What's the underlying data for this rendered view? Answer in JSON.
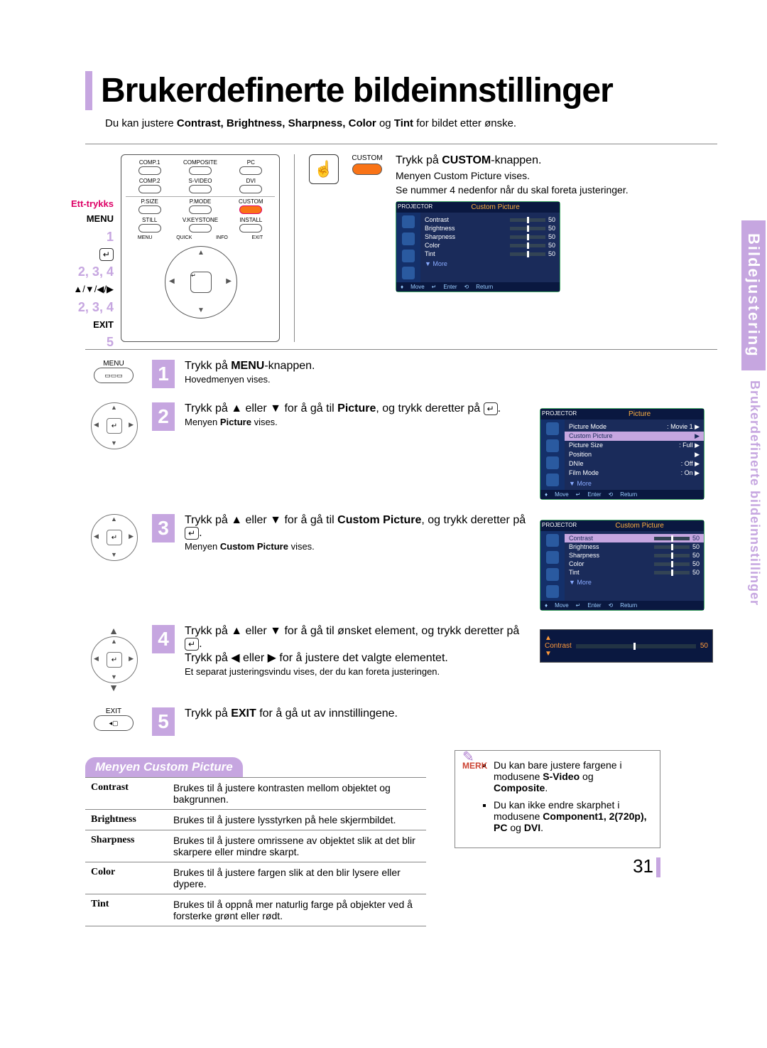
{
  "title": "Brukerdefinerte bildeinnstillinger",
  "intro_pre": "Du kan justere ",
  "intro_bold": "Contrast, Brightness, Sharpness, Color",
  "intro_mid": " og ",
  "intro_bold2": "Tint",
  "intro_post": " for bildet etter ønske.",
  "side_tab_1": "Bildejustering",
  "side_tab_2": "Brukerdefinerte bildeinnstillinger",
  "page_number": "31",
  "remote_labels": {
    "ett": "Ett-trykks",
    "menu": "MENU",
    "n1": "1",
    "n234a": "2, 3, 4",
    "arrows": "▲/▼/◀/▶",
    "n234b": "2, 3, 4",
    "exit": "EXIT",
    "n5": "5"
  },
  "remote_btns": {
    "row1": [
      "COMP.1",
      "COMPOSITE",
      "PC"
    ],
    "row2": [
      "COMP.2",
      "S-VIDEO",
      "DVI"
    ],
    "row3": [
      "P.SIZE",
      "P.MODE",
      "CUSTOM"
    ],
    "row4": [
      "STILL",
      "V.KEYSTONE",
      "INSTALL"
    ],
    "under": [
      "MENU",
      "QUICK",
      "INFO",
      "EXIT"
    ]
  },
  "step0": {
    "custom_label": "CUSTOM",
    "title_pre": "Trykk på ",
    "title_bold": "CUSTOM",
    "title_post": "-knappen.",
    "sub1": "Menyen Custom Picture vises.",
    "sub2": "Se nummer 4 nedenfor når du skal foreta justeringer."
  },
  "osd": {
    "projector": "PROJECTOR",
    "custom_title": "Custom Picture",
    "picture_title": "Picture",
    "rows": [
      {
        "label": "Contrast",
        "val": "50"
      },
      {
        "label": "Brightness",
        "val": "50"
      },
      {
        "label": "Sharpness",
        "val": "50"
      },
      {
        "label": "Color",
        "val": "50"
      },
      {
        "label": "Tint",
        "val": "50"
      }
    ],
    "more": "▼ More",
    "foot_move": "Move",
    "foot_enter": "Enter",
    "foot_return": "Return",
    "picture_rows": [
      {
        "label": "Picture Mode",
        "val": ": Movie 1",
        "arrow": "▶"
      },
      {
        "label": "Custom Picture",
        "val": "",
        "arrow": "▶",
        "hl": true
      },
      {
        "label": "Picture Size",
        "val": ": Full",
        "arrow": "▶"
      },
      {
        "label": "Position",
        "val": "",
        "arrow": "▶"
      },
      {
        "label": "DNIe",
        "val": ": Off",
        "arrow": "▶"
      },
      {
        "label": "Film Mode",
        "val": ": On",
        "arrow": "▶"
      }
    ]
  },
  "steps": {
    "s1": {
      "icon_label": "MENU",
      "text_pre": "Trykk på ",
      "text_bold": "MENU",
      "text_post": "-knappen.",
      "sub": "Hovedmenyen vises."
    },
    "s2": {
      "text_a": "Trykk på ▲ eller ▼ for å gå til ",
      "text_b": "Picture",
      "text_c": ", og trykk deretter på ",
      "sub": "Menyen Picture vises."
    },
    "s3": {
      "text_a": "Trykk på ▲ eller ▼ for å gå til ",
      "text_b": "Custom Picture",
      "text_c": ", og trykk deretter på ",
      "sub": "Menyen Custom Picture vises."
    },
    "s4": {
      "line1": "Trykk på ▲ eller ▼ for å gå til ønsket element, og trykk deretter på ",
      "line2": "Trykk på ◀ eller ▶ for å justere det valgte elementet.",
      "sub": "Et separat justeringsvindu vises, der du kan foreta justeringen."
    },
    "s5": {
      "icon_label": "EXIT",
      "text_pre": "Trykk på ",
      "text_bold": "EXIT",
      "text_post": " for å gå ut av innstillingene."
    }
  },
  "adj_bar": {
    "label": "Contrast",
    "val": "50"
  },
  "cp_header": "Menyen Custom Picture",
  "cp_table": [
    {
      "k": "Contrast",
      "v": "Brukes til å justere kontrasten mellom objektet og bakgrunnen."
    },
    {
      "k": "Brightness",
      "v": "Brukes til å justere lysstyrken på hele skjermbildet."
    },
    {
      "k": "Sharpness",
      "v": "Brukes til å justere omrissene av objektet slik at det blir skarpere eller mindre skarpt."
    },
    {
      "k": "Color",
      "v": "Brukes til å justere fargen slik at den blir lysere eller dypere."
    },
    {
      "k": "Tint",
      "v": "Brukes til å oppnå mer naturlig farge på objekter ved å forsterke grønt eller rødt."
    }
  ],
  "note": {
    "label": "MERK",
    "li1_a": "Du kan bare justere fargene i modusene ",
    "li1_b": "S-Video",
    "li1_c": " og ",
    "li1_d": "Composite",
    "li2_a": "Du kan ikke endre skarphet i modusene ",
    "li2_b": "Component1, 2(720p), PC",
    "li2_c": " og ",
    "li2_d": "DVI"
  }
}
